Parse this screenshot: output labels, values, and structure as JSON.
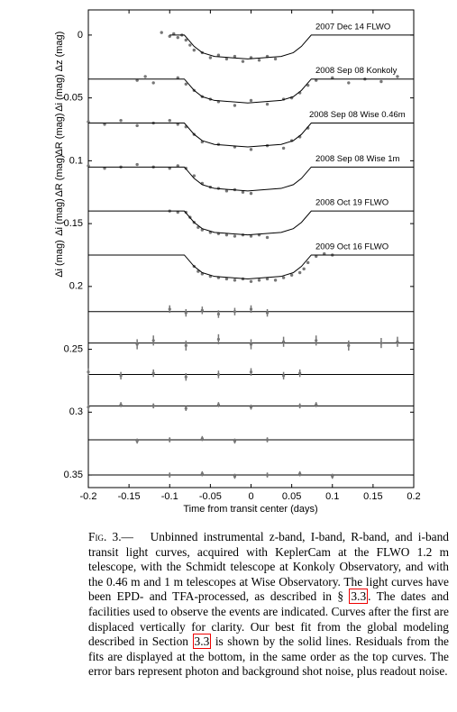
{
  "chart_data": {
    "type": "scatter",
    "xlabel": "Time from transit center (days)",
    "ylabels": [
      "Δi (mag)",
      "Δi (mag)",
      "ΔR (mag)",
      "ΔR (mag)",
      "Δi (mag)",
      "Δz (mag)"
    ],
    "xlim": [
      -0.2,
      0.2
    ],
    "ylim": [
      -0.02,
      0.36
    ],
    "y_inverted": true,
    "xticks": [
      -0.2,
      -0.15,
      -0.1,
      -0.05,
      0,
      0.05,
      0.1,
      0.15,
      0.2
    ],
    "yticks": [
      0,
      0.05,
      0.1,
      0.15,
      0.2,
      0.25,
      0.3,
      0.35
    ],
    "point_color": "#777777",
    "line_color": "#000000",
    "series": [
      {
        "name": "2007 Dec 14 FLWO",
        "x": [
          -0.11,
          -0.1,
          -0.095,
          -0.09,
          -0.085,
          -0.08,
          -0.075,
          -0.07,
          -0.06,
          -0.05,
          -0.04,
          -0.03,
          -0.02,
          -0.01,
          0,
          0.01,
          0.02,
          0.03
        ],
        "values": [
          -0.002,
          0.001,
          -0.001,
          0.002,
          0.0,
          0.004,
          0.008,
          0.012,
          0.014,
          0.018,
          0.016,
          0.019,
          0.017,
          0.021,
          0.018,
          0.02,
          0.017,
          0.019
        ],
        "model_x": [
          -0.1,
          -0.082,
          -0.07,
          -0.06,
          -0.045,
          -0.004,
          0.037,
          0.052,
          0.062,
          0.074,
          0.2
        ],
        "model_values": [
          0,
          0,
          0.009,
          0.014,
          0.017,
          0.019,
          0.017,
          0.014,
          0.009,
          0,
          0
        ]
      },
      {
        "name": "2008 Sep 08 Konkoly",
        "x": [
          -0.14,
          -0.13,
          -0.12,
          -0.09,
          -0.08,
          -0.07,
          -0.06,
          -0.05,
          -0.04,
          -0.02,
          0,
          0.02,
          0.04,
          0.05,
          0.06,
          0.07,
          0.08,
          0.1,
          0.12,
          0.14,
          0.16,
          0.18
        ],
        "values": [
          0.036,
          0.033,
          0.038,
          0.034,
          0.039,
          0.044,
          0.049,
          0.051,
          0.053,
          0.056,
          0.052,
          0.055,
          0.051,
          0.05,
          0.046,
          0.04,
          0.036,
          0.034,
          0.038,
          0.035,
          0.037,
          0.033
        ],
        "model_x": [
          -0.2,
          -0.082,
          -0.07,
          -0.06,
          -0.045,
          -0.004,
          0.037,
          0.052,
          0.062,
          0.074,
          0.2
        ],
        "model_values": [
          0.035,
          0.035,
          0.044,
          0.049,
          0.052,
          0.054,
          0.052,
          0.049,
          0.044,
          0.035,
          0.035
        ]
      },
      {
        "name": "2008 Sep 08 Wise 0.46m",
        "x": [
          -0.2,
          -0.18,
          -0.16,
          -0.14,
          -0.12,
          -0.1,
          -0.09,
          -0.08,
          -0.07,
          -0.06,
          -0.04,
          -0.02,
          0,
          0.02,
          0.04,
          0.05,
          0.06,
          0.07
        ],
        "values": [
          0.069,
          0.071,
          0.068,
          0.072,
          0.07,
          0.068,
          0.071,
          0.073,
          0.079,
          0.085,
          0.087,
          0.089,
          0.091,
          0.088,
          0.09,
          0.084,
          0.081,
          0.074
        ],
        "model_x": [
          -0.2,
          -0.082,
          -0.07,
          -0.06,
          -0.045,
          -0.004,
          0.037,
          0.052,
          0.062,
          0.074,
          0.2
        ],
        "model_values": [
          0.07,
          0.07,
          0.079,
          0.084,
          0.087,
          0.089,
          0.087,
          0.084,
          0.079,
          0.07,
          0.07
        ]
      },
      {
        "name": "2008 Sep 08 Wise 1m",
        "x": [
          -0.2,
          -0.18,
          -0.16,
          -0.14,
          -0.12,
          -0.1,
          -0.09,
          -0.08,
          -0.07,
          -0.06,
          -0.05,
          -0.04,
          -0.03,
          -0.02,
          -0.01,
          0
        ],
        "values": [
          0.104,
          0.106,
          0.105,
          0.103,
          0.105,
          0.106,
          0.104,
          0.106,
          0.112,
          0.118,
          0.121,
          0.122,
          0.124,
          0.123,
          0.125,
          0.126
        ],
        "model_x": [
          -0.2,
          -0.082,
          -0.07,
          -0.06,
          -0.045,
          -0.004,
          0.037,
          0.052,
          0.062,
          0.074,
          0.2
        ],
        "model_values": [
          0.105,
          0.105,
          0.114,
          0.119,
          0.122,
          0.124,
          0.122,
          0.119,
          0.114,
          0.105,
          0.105
        ]
      },
      {
        "name": "2008 Oct 19 FLWO",
        "x": [
          -0.1,
          -0.09,
          -0.08,
          -0.075,
          -0.07,
          -0.065,
          -0.06,
          -0.05,
          -0.04,
          -0.03,
          -0.02,
          -0.01,
          0,
          0.01,
          0.02
        ],
        "values": [
          0.14,
          0.141,
          0.141,
          0.145,
          0.149,
          0.153,
          0.155,
          0.157,
          0.158,
          0.159,
          0.16,
          0.159,
          0.16,
          0.159,
          0.161
        ],
        "model_x": [
          -0.2,
          -0.082,
          -0.07,
          -0.06,
          -0.045,
          -0.004,
          0.037,
          0.052,
          0.062,
          0.074,
          0.2
        ],
        "model_values": [
          0.14,
          0.14,
          0.149,
          0.154,
          0.157,
          0.159,
          0.157,
          0.154,
          0.149,
          0.14,
          0.14
        ]
      },
      {
        "name": "2009 Oct 16 FLWO",
        "x": [
          -0.07,
          -0.065,
          -0.06,
          -0.05,
          -0.04,
          -0.03,
          -0.02,
          -0.01,
          0,
          0.01,
          0.02,
          0.03,
          0.04,
          0.05,
          0.06,
          0.065,
          0.07,
          0.08,
          0.09,
          0.1
        ],
        "values": [
          0.184,
          0.188,
          0.19,
          0.192,
          0.193,
          0.194,
          0.195,
          0.194,
          0.196,
          0.195,
          0.194,
          0.195,
          0.193,
          0.191,
          0.189,
          0.186,
          0.181,
          0.176,
          0.174,
          0.175
        ],
        "model_x": [
          -0.2,
          -0.082,
          -0.07,
          -0.06,
          -0.045,
          -0.004,
          0.037,
          0.052,
          0.062,
          0.074,
          0.2
        ],
        "model_values": [
          0.175,
          0.175,
          0.184,
          0.189,
          0.192,
          0.194,
          0.192,
          0.189,
          0.184,
          0.175,
          0.175
        ]
      }
    ],
    "residuals": [
      {
        "offset": 0.22,
        "error": 0.003,
        "x": [
          -0.1,
          -0.08,
          -0.06,
          -0.04,
          -0.02,
          0,
          0.02
        ],
        "values": [
          0.218,
          0.221,
          0.219,
          0.222,
          0.22,
          0.218,
          0.221
        ]
      },
      {
        "offset": 0.245,
        "error": 0.004,
        "x": [
          -0.14,
          -0.12,
          -0.08,
          -0.04,
          0,
          0.04,
          0.08,
          0.12,
          0.16,
          0.18
        ],
        "values": [
          0.246,
          0.243,
          0.247,
          0.242,
          0.246,
          0.244,
          0.243,
          0.247,
          0.245,
          0.244
        ]
      },
      {
        "offset": 0.27,
        "error": 0.003,
        "x": [
          -0.2,
          -0.16,
          -0.12,
          -0.08,
          -0.04,
          0,
          0.04,
          0.06
        ],
        "values": [
          0.268,
          0.271,
          0.269,
          0.272,
          0.27,
          0.268,
          0.271,
          0.269
        ]
      },
      {
        "offset": 0.295,
        "error": 0.002,
        "x": [
          -0.2,
          -0.16,
          -0.12,
          -0.08,
          -0.04,
          0,
          0.06,
          0.08
        ],
        "values": [
          0.296,
          0.294,
          0.295,
          0.297,
          0.294,
          0.296,
          0.295,
          0.294
        ]
      },
      {
        "offset": 0.322,
        "error": 0.002,
        "x": [
          -0.14,
          -0.1,
          -0.06,
          -0.02,
          0.02
        ],
        "values": [
          0.323,
          0.322,
          0.321,
          0.323,
          0.322
        ]
      },
      {
        "offset": 0.35,
        "error": 0.002,
        "x": [
          -0.1,
          -0.06,
          -0.02,
          0.02,
          0.06,
          0.1
        ],
        "values": [
          0.35,
          0.349,
          0.351,
          0.35,
          0.349,
          0.351
        ]
      }
    ]
  },
  "caption": {
    "label": "Fig. 3.—",
    "parts": [
      "Unbinned instrumental z-band, I-band, R-band, and i-band transit light curves, acquired with KeplerCam at the FLWO 1.2 m telescope, with the Schmidt telescope at Konkoly Observatory, and with the 0.46 m and 1 m telescopes at Wise Observatory. The light curves have been EPD- and TFA-processed, as described in §",
      "3.3",
      ". The dates and facilities used to observe the events are indicated. Curves after the first are displaced vertically for clarity. Our best fit from the global modeling described in Section",
      "3.3",
      "is shown by the solid lines. Residuals from the fits are displayed at the bottom, in the same order as the top curves. The error bars represent photon and background shot noise, plus readout noise."
    ]
  }
}
